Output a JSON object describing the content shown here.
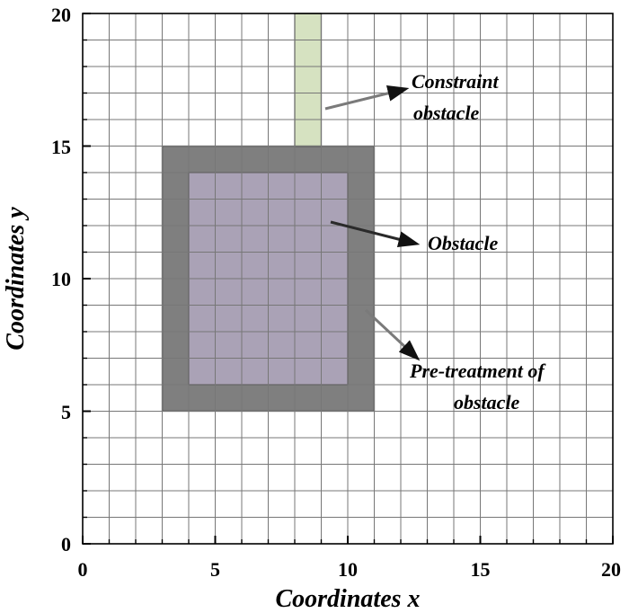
{
  "diagram": {
    "x_axis": {
      "label": "Coordinates x",
      "min": 0,
      "max": 20,
      "ticks": [
        "0",
        "5",
        "10",
        "15",
        "20"
      ]
    },
    "y_axis": {
      "label": "Coordinates y",
      "min": 0,
      "max": 20,
      "ticks": [
        "0",
        "5",
        "10",
        "15",
        "20"
      ]
    },
    "grid": {
      "on": true,
      "step": 1
    },
    "regions": [
      {
        "id": "pre-treatment",
        "x": [
          3,
          11
        ],
        "y": [
          5,
          15
        ],
        "color": "#7f7f7f"
      },
      {
        "id": "obstacle",
        "x": [
          4,
          10
        ],
        "y": [
          6,
          14
        ],
        "color": "#aaa2b6"
      },
      {
        "id": "constraint-obstacle",
        "x": [
          8,
          9
        ],
        "y": [
          15,
          20
        ],
        "color": "#d6e2c1"
      }
    ],
    "annotations": {
      "constraint": [
        "Constraint",
        "obstacle"
      ],
      "obstacle": [
        "Obstacle"
      ],
      "pretreatment": [
        "Pre-treatment of",
        "obstacle"
      ]
    }
  }
}
